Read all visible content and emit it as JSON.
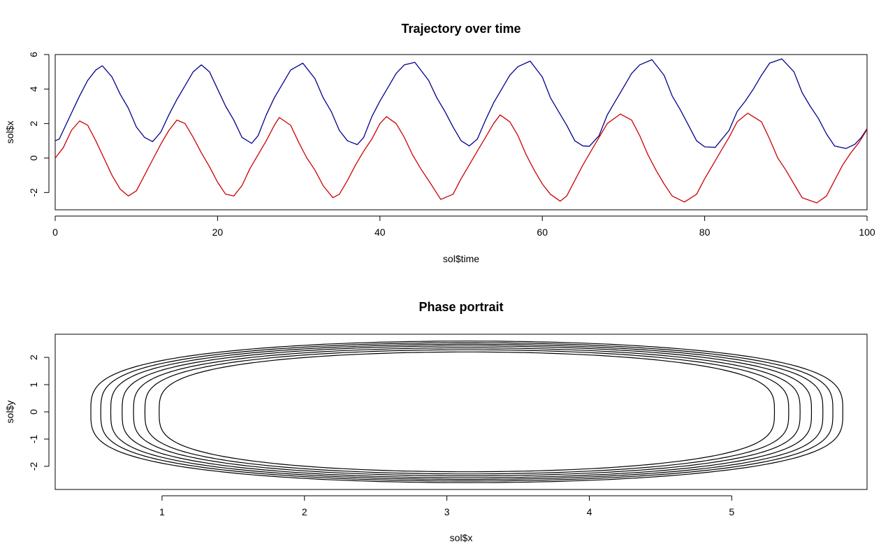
{
  "chart_data": [
    {
      "type": "line",
      "title": "Trajectory over time",
      "xlabel": "sol$time",
      "ylabel": "sol$x",
      "xlim": [
        0,
        100
      ],
      "ylim": [
        -3,
        6
      ],
      "xticks": [
        0,
        20,
        40,
        60,
        80,
        100
      ],
      "xtick_labels": [
        "0",
        "20",
        "40",
        "60",
        "80",
        "100"
      ],
      "yticks": [
        -2,
        0,
        2,
        4,
        6
      ],
      "ytick_labels": [
        "-2",
        "0",
        "2",
        "4",
        "6"
      ],
      "grid": false,
      "legend": "none",
      "series": [
        {
          "color": "#00008b",
          "x": [
            0,
            0.5,
            1,
            2,
            3,
            4,
            5,
            5.8,
            7,
            8,
            9,
            10,
            11,
            12,
            13,
            14,
            15,
            16,
            17,
            18,
            19,
            20,
            21,
            22,
            23,
            24.2,
            25,
            26,
            27,
            28,
            29,
            30.5,
            32,
            33,
            34,
            35,
            36,
            37.2,
            38,
            39,
            40,
            41,
            42,
            43,
            44.3,
            46,
            47,
            48,
            49,
            50,
            51,
            52,
            53,
            54,
            55,
            56,
            57,
            58.5,
            60,
            61,
            62,
            63,
            64,
            65,
            65.8,
            67,
            68,
            69,
            70,
            71,
            72,
            73.5,
            75,
            76,
            77,
            78,
            79,
            80,
            81.3,
            83,
            84,
            85,
            86,
            87,
            88,
            89.5,
            91,
            92,
            93,
            94,
            95,
            96,
            97.4,
            98.5,
            99.3,
            100
          ],
          "y": [
            1.0,
            1.1,
            1.6,
            2.6,
            3.6,
            4.5,
            5.1,
            5.35,
            4.7,
            3.7,
            2.9,
            1.8,
            1.2,
            0.95,
            1.5,
            2.5,
            3.4,
            4.2,
            5.0,
            5.4,
            5.0,
            4.0,
            3.0,
            2.2,
            1.2,
            0.85,
            1.3,
            2.5,
            3.5,
            4.3,
            5.1,
            5.5,
            4.6,
            3.5,
            2.7,
            1.6,
            1.0,
            0.78,
            1.2,
            2.4,
            3.3,
            4.1,
            4.9,
            5.4,
            5.55,
            4.5,
            3.5,
            2.7,
            1.8,
            1.0,
            0.7,
            1.1,
            2.2,
            3.2,
            4.0,
            4.8,
            5.3,
            5.62,
            4.7,
            3.5,
            2.7,
            1.9,
            1.0,
            0.7,
            0.68,
            1.3,
            2.5,
            3.3,
            4.1,
            4.9,
            5.4,
            5.7,
            4.8,
            3.6,
            2.8,
            1.9,
            1.0,
            0.65,
            0.62,
            1.6,
            2.7,
            3.3,
            4.0,
            4.8,
            5.5,
            5.75,
            5.0,
            3.8,
            3.0,
            2.3,
            1.4,
            0.7,
            0.55,
            0.8,
            1.2,
            1.7
          ]
        },
        {
          "color": "#cc0000",
          "x": [
            0,
            1,
            2,
            3,
            4,
            5,
            6,
            7,
            8,
            9,
            10,
            11,
            12,
            13,
            14,
            15,
            16,
            17,
            18,
            19,
            20,
            21,
            22,
            23,
            24,
            25,
            26,
            27,
            27.6,
            29,
            30,
            31,
            32,
            33,
            34.2,
            35,
            36,
            37,
            38,
            39,
            40,
            40.8,
            42,
            43,
            44,
            45,
            46,
            47.5,
            49,
            50,
            51,
            52,
            53,
            54,
            54.8,
            56,
            57,
            58,
            59,
            60,
            61,
            62.2,
            63,
            64,
            65,
            66,
            67,
            68,
            69.6,
            71,
            72,
            73,
            74,
            75,
            76,
            77.5,
            79,
            80,
            81,
            82,
            83,
            84,
            85.3,
            87,
            88,
            89,
            90,
            91,
            92,
            93.8,
            95,
            96,
            97,
            98,
            99,
            100
          ],
          "y": [
            0.0,
            0.6,
            1.6,
            2.15,
            1.9,
            1.0,
            0.0,
            -1.0,
            -1.8,
            -2.2,
            -1.9,
            -1.0,
            -0.1,
            0.8,
            1.6,
            2.2,
            2.0,
            1.2,
            0.3,
            -0.5,
            -1.4,
            -2.1,
            -2.2,
            -1.6,
            -0.6,
            0.2,
            1.0,
            1.9,
            2.35,
            1.9,
            0.9,
            0.0,
            -0.7,
            -1.6,
            -2.3,
            -2.1,
            -1.3,
            -0.4,
            0.4,
            1.1,
            2.0,
            2.4,
            2.0,
            1.2,
            0.2,
            -0.6,
            -1.3,
            -2.4,
            -2.1,
            -1.2,
            -0.4,
            0.4,
            1.2,
            2.0,
            2.5,
            2.1,
            1.3,
            0.2,
            -0.7,
            -1.5,
            -2.1,
            -2.5,
            -2.2,
            -1.3,
            -0.4,
            0.4,
            1.2,
            2.0,
            2.55,
            2.2,
            1.3,
            0.2,
            -0.7,
            -1.5,
            -2.2,
            -2.55,
            -2.1,
            -1.2,
            -0.4,
            0.4,
            1.2,
            2.1,
            2.6,
            2.1,
            1.1,
            0.0,
            -0.7,
            -1.5,
            -2.3,
            -2.6,
            -2.2,
            -1.3,
            -0.4,
            0.3,
            0.9,
            1.65
          ]
        }
      ]
    },
    {
      "type": "line",
      "title": "Phase portrait",
      "xlabel": "sol$x",
      "ylabel": "sol$y",
      "xlim": [
        0.25,
        5.95
      ],
      "ylim": [
        -2.85,
        2.85
      ],
      "xticks": [
        1,
        2,
        3,
        4,
        5
      ],
      "xtick_labels": [
        "1",
        "2",
        "3",
        "4",
        "5"
      ],
      "yticks": [
        -2,
        -1,
        0,
        1,
        2
      ],
      "ytick_labels": [
        "-2",
        "-1",
        "0",
        "1",
        "2"
      ],
      "grid": false,
      "legend": "none",
      "series": [
        {
          "color": "#000000",
          "center_x": 3.1416,
          "loops": [
            {
              "x_min": 0.98,
              "x_max": 5.3,
              "y_max": 2.2
            },
            {
              "x_min": 0.88,
              "x_max": 5.4,
              "y_max": 2.28
            },
            {
              "x_min": 0.8,
              "x_max": 5.48,
              "y_max": 2.35
            },
            {
              "x_min": 0.72,
              "x_max": 5.56,
              "y_max": 2.42
            },
            {
              "x_min": 0.64,
              "x_max": 5.64,
              "y_max": 2.48
            },
            {
              "x_min": 0.57,
              "x_max": 5.71,
              "y_max": 2.54
            },
            {
              "x_min": 0.5,
              "x_max": 5.78,
              "y_max": 2.6
            }
          ]
        }
      ]
    }
  ]
}
